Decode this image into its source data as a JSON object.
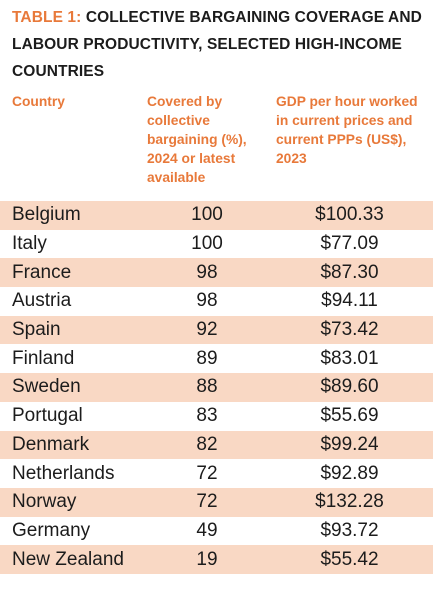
{
  "title": {
    "lead": "TABLE 1:",
    "rest": " COLLECTIVE BARGAINING COVERAGE AND LABOUR PRODUCTIVITY, SELECTED HIGH-INCOME COUNTRIES"
  },
  "columns": {
    "country": "Country",
    "coverage": "Covered by collective bargaining (%), 2024 or latest available",
    "gdp": "GDP per hour worked in current prices and current PPPs (US$), 2023"
  },
  "rows": [
    {
      "country": "Belgium",
      "coverage": "100",
      "gdp": "$100.33"
    },
    {
      "country": "Italy",
      "coverage": "100",
      "gdp": "$77.09"
    },
    {
      "country": "France",
      "coverage": "98",
      "gdp": "$87.30"
    },
    {
      "country": "Austria",
      "coverage": "98",
      "gdp": "$94.11"
    },
    {
      "country": "Spain",
      "coverage": "92",
      "gdp": "$73.42"
    },
    {
      "country": "Finland",
      "coverage": "89",
      "gdp": "$83.01"
    },
    {
      "country": "Sweden",
      "coverage": "88",
      "gdp": "$89.60"
    },
    {
      "country": "Portugal",
      "coverage": "83",
      "gdp": "$55.69"
    },
    {
      "country": "Denmark",
      "coverage": "82",
      "gdp": "$99.24"
    },
    {
      "country": "Netherlands",
      "coverage": "72",
      "gdp": "$92.89"
    },
    {
      "country": "Norway",
      "coverage": "72",
      "gdp": "$132.28"
    },
    {
      "country": "Germany",
      "coverage": "49",
      "gdp": "$93.72"
    },
    {
      "country": "New Zealand",
      "coverage": "19",
      "gdp": "$55.42"
    }
  ],
  "colors": {
    "accent": "#e8793a",
    "row_shade": "#f9d8c4",
    "text": "#1c1c1c"
  }
}
